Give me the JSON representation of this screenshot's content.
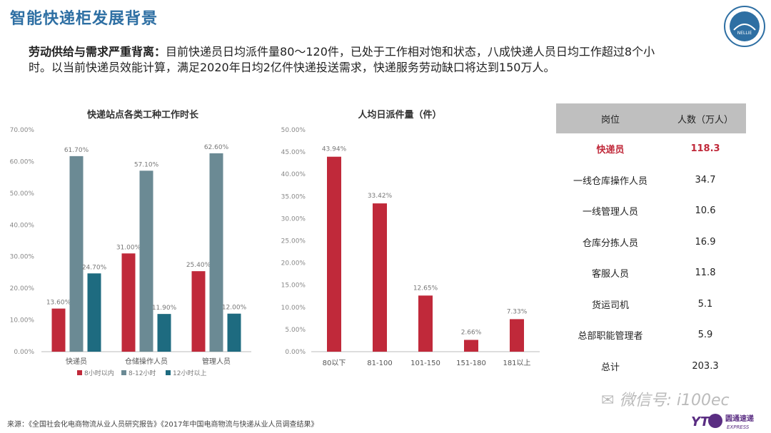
{
  "header": {
    "title": "智能快递柜发展背景"
  },
  "intro": {
    "bold": "劳动供给与需求严重背离：",
    "text": "目前快递员日均派件量80～120件，已处于工作相对饱和状态，八成快递人员日均工作超过8个小时。以当前快递员效能计算，满足2020年日均2亿件快递投送需求，快递服务劳动缺口将达到150万人。"
  },
  "colors": {
    "red": "#c0293a",
    "gray": "#6b8a94",
    "teal": "#1e6b80",
    "title_blue": "#2e6fa3"
  },
  "chart_data": [
    {
      "type": "bar",
      "title": "快递站点各类工种工作时长",
      "categories": [
        "快递员",
        "仓储操作人员",
        "管理人员"
      ],
      "series": [
        {
          "name": "8小时以内",
          "values": [
            13.6,
            31.0,
            25.4
          ],
          "labels": [
            "13.60%",
            "31.00%",
            "25.40%"
          ]
        },
        {
          "name": "8-12小时",
          "values": [
            61.7,
            57.1,
            62.6
          ],
          "labels": [
            "61.70%",
            "57.10%",
            "62.60%"
          ]
        },
        {
          "name": "12小时以上",
          "values": [
            24.7,
            11.9,
            12.0
          ],
          "labels": [
            "24.70%",
            "11.90%",
            "12.00%"
          ]
        }
      ],
      "ylim": [
        0,
        70
      ],
      "yticks": [
        "0.00%",
        "10.00%",
        "20.00%",
        "30.00%",
        "40.00%",
        "50.00%",
        "60.00%",
        "70.00%"
      ],
      "legend": "bottom"
    },
    {
      "type": "bar",
      "title": "人均日派件量（件）",
      "categories": [
        "80以下",
        "81-100",
        "101-150",
        "151-180",
        "181以上"
      ],
      "values": [
        43.94,
        33.42,
        12.65,
        2.66,
        7.33
      ],
      "labels": [
        "43.94%",
        "33.42%",
        "12.65%",
        "2.66%",
        "7.33%"
      ],
      "ylim": [
        0,
        50
      ],
      "yticks": [
        "0.00%",
        "5.00%",
        "10.00%",
        "15.00%",
        "20.00%",
        "25.00%",
        "30.00%",
        "35.00%",
        "40.00%",
        "45.00%",
        "50.00%"
      ]
    }
  ],
  "table": {
    "headers": [
      "岗位",
      "人数（万人）"
    ],
    "rows": [
      {
        "role": "快递员",
        "count": "118.3"
      },
      {
        "role": "一线仓库操作人员",
        "count": "34.7"
      },
      {
        "role": "一线管理人员",
        "count": "10.6"
      },
      {
        "role": "仓库分拣人员",
        "count": "16.9"
      },
      {
        "role": "客服人员",
        "count": "11.8"
      },
      {
        "role": "货运司机",
        "count": "5.1"
      },
      {
        "role": "总部职能管理者",
        "count": "5.9"
      },
      {
        "role": "总计",
        "count": "203.3"
      }
    ]
  },
  "footer": {
    "source": "来源：《全国社会化电商物流从业人员研究报告》《2017年中国电商物流与快递从业人员调查结果》",
    "watermark": "微信号: i100ec",
    "brand": "圆通速递",
    "brand_sub": "EXPRESS",
    "logo_text": "NELLIE"
  }
}
